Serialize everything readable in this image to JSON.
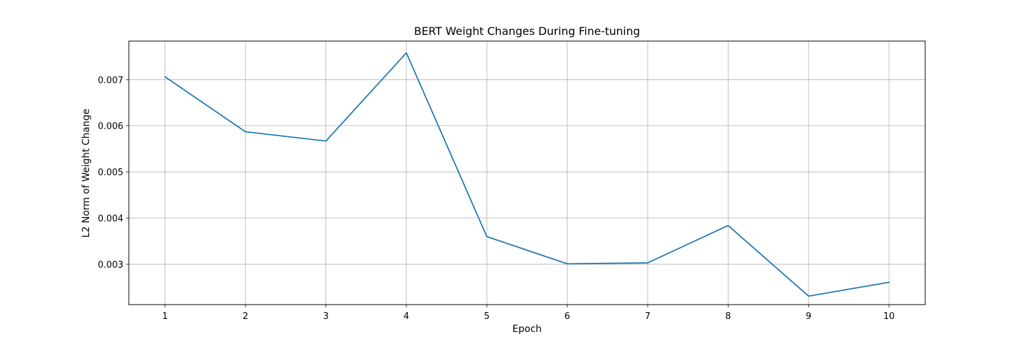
{
  "chart_data": {
    "type": "line",
    "title": "BERT Weight Changes During Fine-tuning",
    "xlabel": "Epoch",
    "ylabel": "L2 Norm of Weight Change",
    "x": [
      1,
      2,
      3,
      4,
      5,
      6,
      7,
      8,
      9,
      10
    ],
    "series": [
      {
        "values": [
          0.00706,
          0.00587,
          0.00567,
          0.00758,
          0.0036,
          0.00301,
          0.00303,
          0.00384,
          0.00231,
          0.00261
        ],
        "color": "#1f77b4"
      }
    ],
    "xticks": [
      "1",
      "2",
      "3",
      "4",
      "5",
      "6",
      "7",
      "8",
      "9",
      "10"
    ],
    "yticks": [
      0.003,
      0.004,
      0.005,
      0.006,
      0.007
    ],
    "ytick_labels": [
      "0.003",
      "0.004",
      "0.005",
      "0.006",
      "0.007"
    ],
    "xlim": [
      0.55,
      10.45
    ],
    "ylim": [
      0.002126,
      0.007835
    ],
    "grid": true,
    "legend": false
  }
}
